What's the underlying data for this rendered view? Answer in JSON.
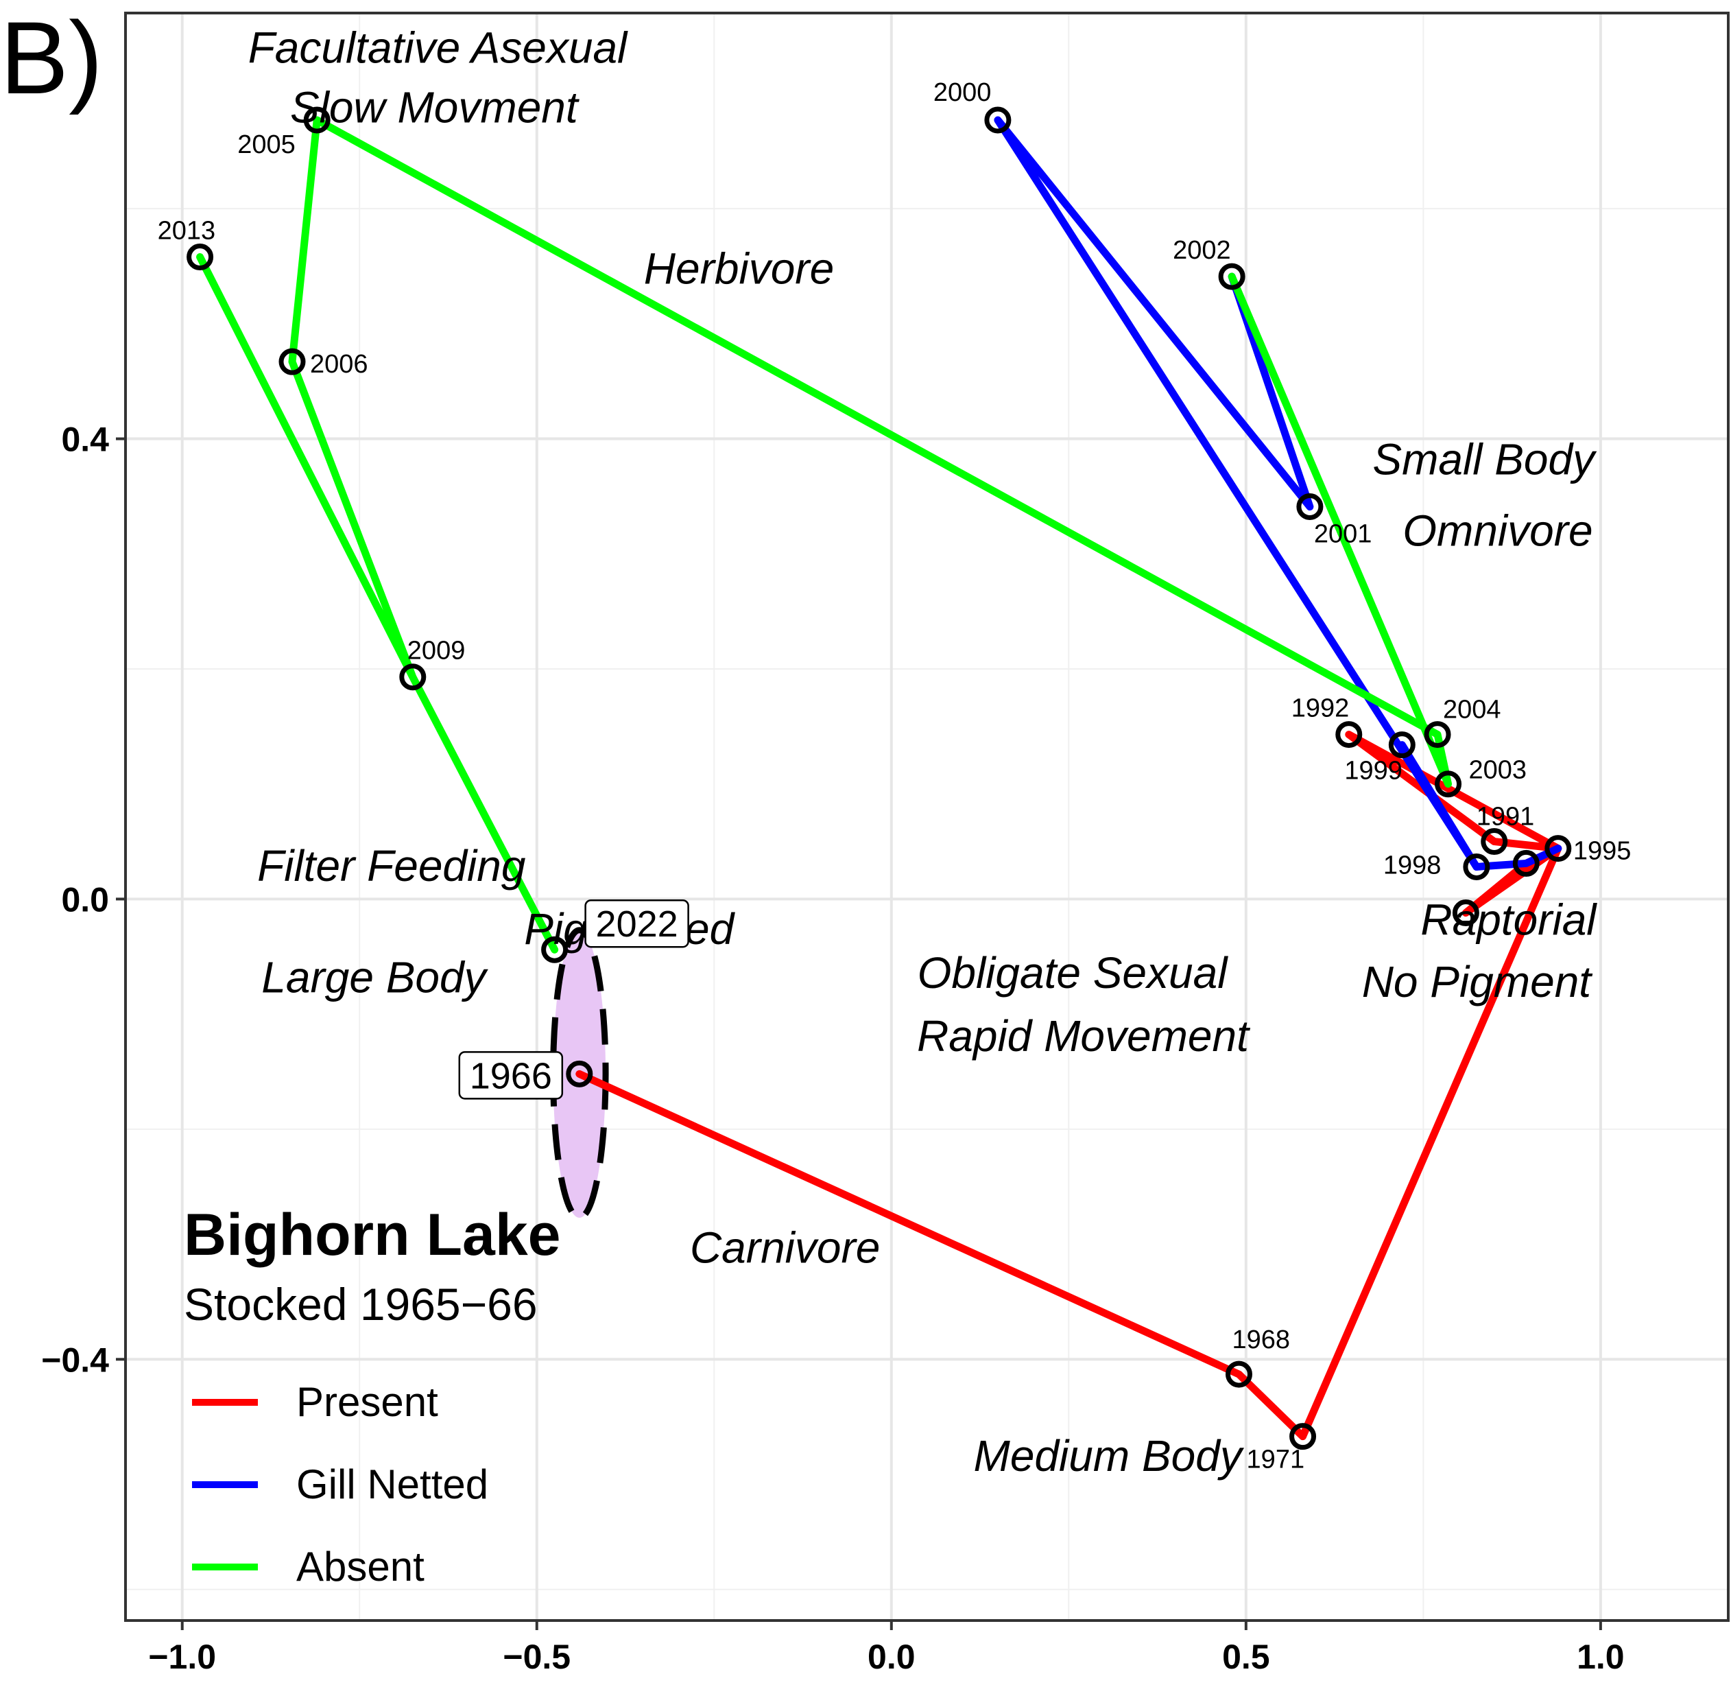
{
  "panel_letter": "B)",
  "chart_data": {
    "type": "line",
    "xlim": [
      -1.08,
      1.18
    ],
    "ylim": [
      -0.627,
      0.77
    ],
    "x_ticks": [
      {
        "value": -1.0,
        "label": "−1.0"
      },
      {
        "value": -0.5,
        "label": "−0.5"
      },
      {
        "value": 0.0,
        "label": "0.0"
      },
      {
        "value": 0.5,
        "label": "0.5"
      },
      {
        "value": 1.0,
        "label": "1.0"
      }
    ],
    "y_ticks": [
      {
        "value": 0.4,
        "label": "0.4"
      },
      {
        "value": 0.0,
        "label": "0.0"
      },
      {
        "value": -0.4,
        "label": "−0.4"
      }
    ],
    "grid": true,
    "legend_position": "bottom-left",
    "legend": {
      "title": "Bighorn Lake",
      "subtitle": "Stocked 1965−66",
      "entries": [
        {
          "label": "Present",
          "color": "#ff0000"
        },
        {
          "label": "Gill Netted",
          "color": "#0000ff"
        },
        {
          "label": "Absent",
          "color": "#00ff00"
        }
      ]
    },
    "points": [
      {
        "year": "1966",
        "x": -0.44,
        "y": -0.152,
        "label_style": "boxed"
      },
      {
        "year": "1968",
        "x": 0.49,
        "y": -0.413
      },
      {
        "year": "1971",
        "x": 0.58,
        "y": -0.467
      },
      {
        "year": "1991",
        "x": 0.85,
        "y": 0.05
      },
      {
        "year": "1992",
        "x": 0.645,
        "y": 0.143
      },
      {
        "year": "1995",
        "x": 0.94,
        "y": 0.044
      },
      {
        "year": "1998",
        "x": 0.825,
        "y": 0.028
      },
      {
        "year": "1999",
        "x": 0.72,
        "y": 0.134
      },
      {
        "year": "2000",
        "x": 0.15,
        "y": 0.677
      },
      {
        "year": "2001",
        "x": 0.59,
        "y": 0.341
      },
      {
        "year": "2002",
        "x": 0.48,
        "y": 0.541
      },
      {
        "year": "2003",
        "x": 0.785,
        "y": 0.1
      },
      {
        "year": "2004",
        "x": 0.77,
        "y": 0.143
      },
      {
        "year": "2005",
        "x": -0.81,
        "y": 0.677
      },
      {
        "year": "2006",
        "x": -0.845,
        "y": 0.467
      },
      {
        "year": "2009",
        "x": -0.675,
        "y": 0.193
      },
      {
        "year": "2013",
        "x": -0.975,
        "y": 0.558
      },
      {
        "year": "2022",
        "x": -0.475,
        "y": -0.044,
        "label_style": "boxed"
      },
      {
        "year": "",
        "x": 0.81,
        "y": -0.012
      },
      {
        "year": "",
        "x": 0.895,
        "y": 0.031
      }
    ],
    "series": [
      {
        "name": "Present",
        "color": "#ff0000",
        "segments": [
          [
            [
              -0.44,
              -0.152
            ],
            [
              0.49,
              -0.413
            ],
            [
              0.58,
              -0.467
            ],
            [
              0.94,
              0.044
            ],
            [
              0.81,
              -0.012
            ],
            [
              0.895,
              0.031
            ],
            [
              0.94,
              0.044
            ],
            [
              0.85,
              0.05
            ],
            [
              0.645,
              0.143
            ],
            [
              0.94,
              0.044
            ]
          ]
        ]
      },
      {
        "name": "Gill Netted",
        "color": "#0000ff",
        "segments": [
          [
            [
              0.72,
              0.134
            ],
            [
              0.825,
              0.028
            ],
            [
              0.895,
              0.031
            ],
            [
              0.94,
              0.044
            ]
          ],
          [
            [
              0.48,
              0.541
            ],
            [
              0.59,
              0.341
            ],
            [
              0.15,
              0.677
            ],
            [
              0.825,
              0.028
            ]
          ]
        ]
      },
      {
        "name": "Absent",
        "color": "#00ff00",
        "segments": [
          [
            [
              0.48,
              0.541
            ],
            [
              0.785,
              0.1
            ],
            [
              0.77,
              0.143
            ],
            [
              -0.81,
              0.677
            ],
            [
              -0.845,
              0.467
            ],
            [
              -0.675,
              0.193
            ],
            [
              -0.975,
              0.558
            ],
            [
              -0.675,
              0.193
            ],
            [
              -0.475,
              -0.044
            ]
          ]
        ]
      }
    ],
    "ellipse": {
      "cx": -0.44,
      "cy": -0.152,
      "rx": 0.037,
      "ry": 0.125,
      "fill": "#e8c6f5"
    },
    "trait_labels": [
      {
        "text": "Facultative Asexual",
        "x": -0.64,
        "y": 0.74
      },
      {
        "text": "Slow Movment",
        "x": -0.645,
        "y": 0.688
      },
      {
        "text": "Herbivore",
        "x": -0.215,
        "y": 0.548
      },
      {
        "text": "Small Body",
        "x": 0.835,
        "y": 0.382
      },
      {
        "text": "Omnivore",
        "x": 0.855,
        "y": 0.32
      },
      {
        "text": "Filter Feeding",
        "x": -0.705,
        "y": 0.029
      },
      {
        "text": "Pigmented",
        "x": -0.37,
        "y": -0.026
      },
      {
        "text": "Large Body",
        "x": -0.73,
        "y": -0.068
      },
      {
        "text": "Obligate Sexual",
        "x": 0.255,
        "y": -0.064
      },
      {
        "text": "Rapid Movement",
        "x": 0.27,
        "y": -0.119
      },
      {
        "text": "Raptorial",
        "x": 0.87,
        "y": -0.018
      },
      {
        "text": "No Pigment",
        "x": 0.825,
        "y": -0.072
      },
      {
        "text": "Carnivore",
        "x": -0.15,
        "y": -0.303
      },
      {
        "text": "Medium Body",
        "x": 0.305,
        "y": -0.484
      }
    ]
  }
}
